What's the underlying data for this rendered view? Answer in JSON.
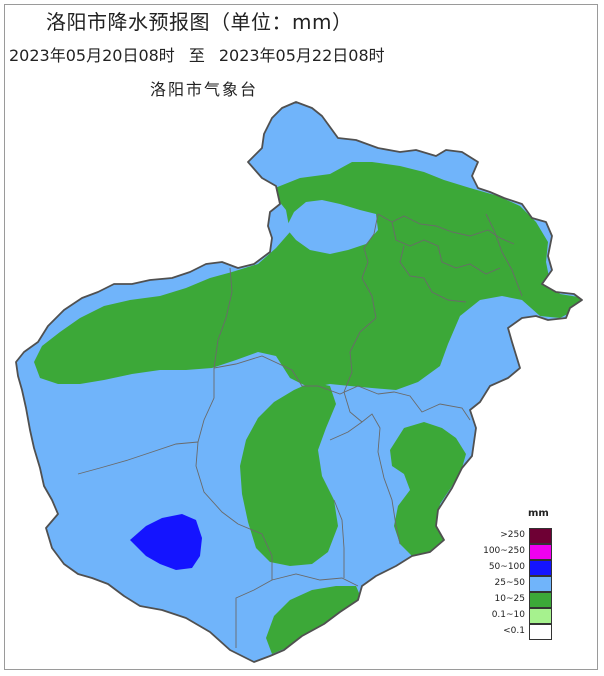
{
  "title": "洛阳市降水预报图（单位：mm）",
  "period": {
    "start": "2023年05月20日08时",
    "connector": "至",
    "end": "2023年05月22日08时"
  },
  "publisher": "洛阳市气象台",
  "legend": {
    "unit": "mm",
    "items": [
      {
        "label": ">250",
        "color": "#6e0034"
      },
      {
        "label": "100~250",
        "color": "#f000f0"
      },
      {
        "label": "50~100",
        "color": "#1414ff"
      },
      {
        "label": "25~50",
        "color": "#70b4fa"
      },
      {
        "label": "10~25",
        "color": "#3ca838"
      },
      {
        "label": "0.1~10",
        "color": "#a6f28e"
      },
      {
        "label": "<0.1",
        "color": "#ffffff"
      }
    ]
  },
  "colors": {
    "rain_25_50": "#70b4fa",
    "rain_10_25": "#3ca838",
    "rain_50_100": "#1414ff",
    "boundary": "#555555"
  }
}
